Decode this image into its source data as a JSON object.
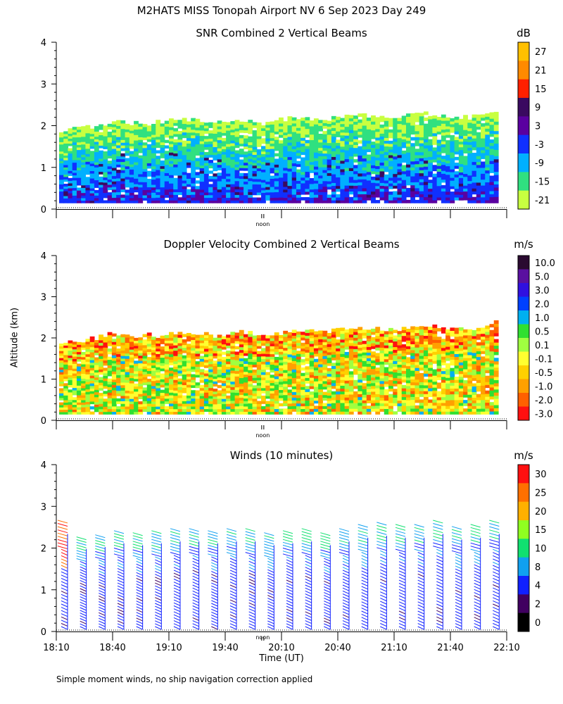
{
  "figure_title": "M2HATS MISS Tonopah Airport NV   6 Sep 2023 Day 249",
  "ylabel": "Altitude (km)",
  "xlabel": "Time (UT)",
  "footnote": "Simple moment winds, no ship navigation correction applied",
  "noon_label": "noon",
  "x_ticks": [
    "18:10",
    "18:40",
    "19:10",
    "19:40",
    "20:10",
    "20:40",
    "21:10",
    "21:40",
    "22:10"
  ],
  "y_ticks": [
    "0",
    "1",
    "2",
    "3",
    "4"
  ],
  "panels": [
    {
      "title": "SNR Combined 2 Vertical Beams",
      "unit": "dB",
      "colorbar": {
        "labels": [
          "27",
          "21",
          "15",
          "9",
          "3",
          "-3",
          "-9",
          "-15",
          "-21"
        ],
        "colors": [
          "#ffc000",
          "#ff8a00",
          "#ff2000",
          "#3a0a60",
          "#5a00a0",
          "#1030ff",
          "#00b0ff",
          "#30e080",
          "#c8ff40"
        ]
      }
    },
    {
      "title": "Doppler Velocity Combined 2 Vertical Beams",
      "unit": "m/s",
      "colorbar": {
        "labels": [
          "10.0",
          "5.0",
          "3.0",
          "2.0",
          "1.0",
          "0.5",
          "0.1",
          "-0.1",
          "-0.5",
          "-1.0",
          "-2.0",
          "-3.0"
        ],
        "colors": [
          "#2a0a30",
          "#5a10a0",
          "#3010e0",
          "#0040ff",
          "#00b0f0",
          "#30e030",
          "#a0ff40",
          "#ffff30",
          "#ffd000",
          "#ffa000",
          "#ff6000",
          "#ff1010"
        ]
      }
    },
    {
      "title": "Winds (10 minutes)",
      "unit": "m/s",
      "colorbar": {
        "labels": [
          "30",
          "25",
          "20",
          "15",
          "10",
          "8",
          "4",
          "2",
          "0"
        ],
        "colors": [
          "#ff1010",
          "#ff7000",
          "#ffb000",
          "#90ff20",
          "#10e070",
          "#10a0f0",
          "#1020ff",
          "#400060",
          "#000000"
        ]
      }
    }
  ],
  "chart_data": [
    {
      "type": "heatmap",
      "title": "SNR Combined 2 Vertical Beams",
      "ylabel": "Altitude (km)",
      "ylim": [
        0,
        4
      ],
      "xlim": [
        "18:10",
        "22:10"
      ],
      "colorbar_unit": "dB",
      "colorbar_levels": [
        -21,
        -15,
        -9,
        -3,
        3,
        9,
        15,
        21,
        27
      ],
      "echo_top_km": [
        1.9,
        1.95,
        2.1,
        2.05,
        2.1,
        2.15,
        2.05,
        2.15,
        2.05,
        2.2,
        2.15,
        2.2,
        2.25,
        2.2,
        2.3,
        2.25,
        2.2,
        2.4
      ],
      "echo_bottom_km": 0.15
    },
    {
      "type": "heatmap",
      "title": "Doppler Velocity Combined 2 Vertical Beams",
      "ylabel": "Altitude (km)",
      "ylim": [
        0,
        4
      ],
      "xlim": [
        "18:10",
        "22:10"
      ],
      "colorbar_unit": "m/s",
      "colorbar_levels": [
        -3.0,
        -2.0,
        -1.0,
        -0.5,
        -0.1,
        0.1,
        0.5,
        1.0,
        2.0,
        3.0,
        5.0,
        10.0
      ],
      "echo_top_km": [
        1.9,
        1.95,
        2.1,
        2.05,
        2.1,
        2.15,
        2.05,
        2.15,
        2.05,
        2.2,
        2.15,
        2.2,
        2.25,
        2.2,
        2.3,
        2.25,
        2.2,
        2.4
      ],
      "echo_bottom_km": 0.15
    },
    {
      "type": "scatter",
      "title": "Winds (10 minutes)",
      "xlabel": "Time (UT)",
      "ylabel": "Altitude (km)",
      "ylim": [
        0,
        4
      ],
      "xlim": [
        "18:10",
        "22:10"
      ],
      "colorbar_unit": "m/s",
      "colorbar_levels": [
        0,
        2,
        4,
        8,
        10,
        15,
        20,
        25,
        30
      ],
      "profile_times": [
        "18:16",
        "18:26",
        "18:36",
        "18:46",
        "18:56",
        "19:06",
        "19:16",
        "19:26",
        "19:36",
        "19:46",
        "19:56",
        "20:06",
        "20:16",
        "20:26",
        "20:36",
        "20:46",
        "20:56",
        "21:06",
        "21:16",
        "21:26",
        "21:36",
        "21:46",
        "21:56",
        "22:06"
      ],
      "profile_top_km": [
        2.6,
        2.2,
        2.25,
        2.35,
        2.3,
        2.35,
        2.4,
        2.4,
        2.35,
        2.4,
        2.4,
        2.3,
        2.35,
        2.4,
        2.3,
        2.4,
        2.5,
        2.55,
        2.5,
        2.5,
        2.6,
        2.45,
        2.5,
        2.6
      ]
    }
  ]
}
